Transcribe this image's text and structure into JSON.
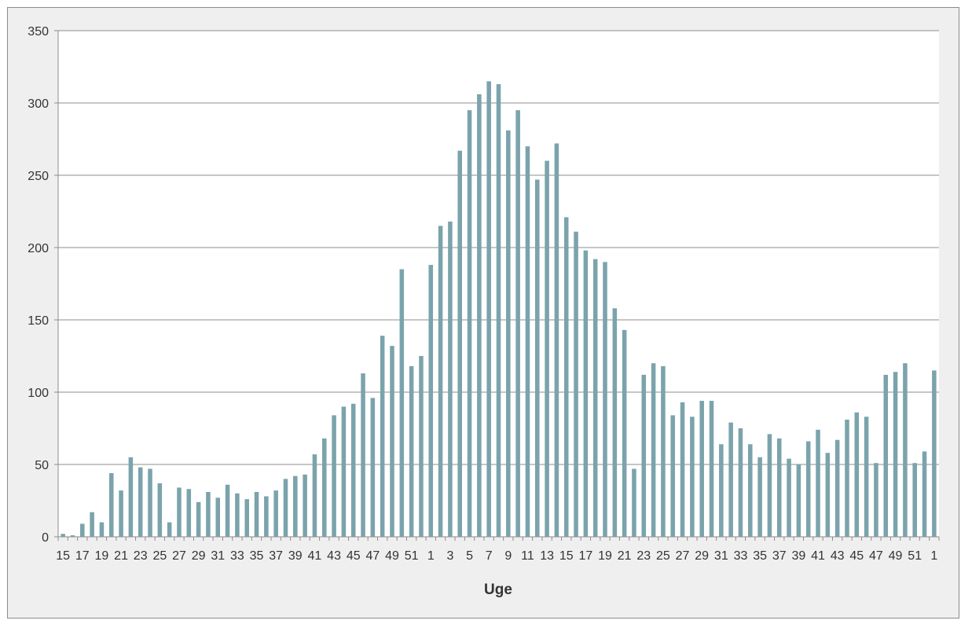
{
  "chart_data": {
    "type": "bar",
    "xlabel": "Uge",
    "ylabel": "",
    "ylim": [
      0,
      350
    ],
    "yticks": [
      0,
      50,
      100,
      150,
      200,
      250,
      300,
      350
    ],
    "grid": true,
    "legend": "none",
    "colors": {
      "bar": "#7ba3ac",
      "grid": "#8c8c8c",
      "axis": "#8c8c8c",
      "background": "#efefef",
      "plot_background": "#ffffff"
    },
    "categories": [
      "15",
      "16",
      "17",
      "18",
      "19",
      "20",
      "21",
      "22",
      "23",
      "24",
      "25",
      "26",
      "27",
      "28",
      "29",
      "30",
      "31",
      "32",
      "33",
      "34",
      "35",
      "36",
      "37",
      "38",
      "39",
      "40",
      "41",
      "42",
      "43",
      "44",
      "45",
      "46",
      "47",
      "48",
      "49",
      "50",
      "51",
      "52",
      "1",
      "2",
      "3",
      "4",
      "5",
      "6",
      "7",
      "8",
      "9",
      "10",
      "11",
      "12",
      "13",
      "14",
      "15",
      "16",
      "17",
      "18",
      "19",
      "20",
      "21",
      "22",
      "23",
      "24",
      "25",
      "26",
      "27",
      "28",
      "29",
      "30",
      "31",
      "32",
      "33",
      "34",
      "35",
      "36",
      "37",
      "38",
      "39",
      "40",
      "41",
      "42",
      "43",
      "44",
      "45",
      "46",
      "47",
      "48",
      "49",
      "50",
      "51",
      "52",
      "1"
    ],
    "xtick_labels": [
      "15",
      "17",
      "19",
      "21",
      "23",
      "25",
      "27",
      "29",
      "31",
      "33",
      "35",
      "37",
      "39",
      "41",
      "43",
      "45",
      "47",
      "49",
      "51",
      "1",
      "3",
      "5",
      "7",
      "9",
      "11",
      "13",
      "15",
      "17",
      "19",
      "21",
      "23",
      "25",
      "27",
      "29",
      "31",
      "33",
      "35",
      "37",
      "39",
      "41",
      "43",
      "45",
      "47",
      "49",
      "51",
      "1"
    ],
    "values": [
      2,
      1,
      9,
      17,
      10,
      44,
      32,
      55,
      48,
      47,
      37,
      10,
      34,
      33,
      24,
      31,
      27,
      36,
      30,
      26,
      31,
      28,
      32,
      40,
      42,
      43,
      57,
      68,
      84,
      90,
      92,
      113,
      96,
      139,
      132,
      185,
      118,
      125,
      188,
      215,
      218,
      267,
      295,
      306,
      315,
      313,
      281,
      295,
      270,
      247,
      260,
      272,
      221,
      211,
      198,
      192,
      190,
      158,
      143,
      47,
      112,
      120,
      118,
      84,
      93,
      83,
      94,
      94,
      64,
      79,
      75,
      64,
      55,
      71,
      68,
      54,
      50,
      66,
      74,
      58,
      67,
      81,
      86,
      83,
      51,
      112,
      114,
      120,
      51,
      59,
      115
    ]
  }
}
